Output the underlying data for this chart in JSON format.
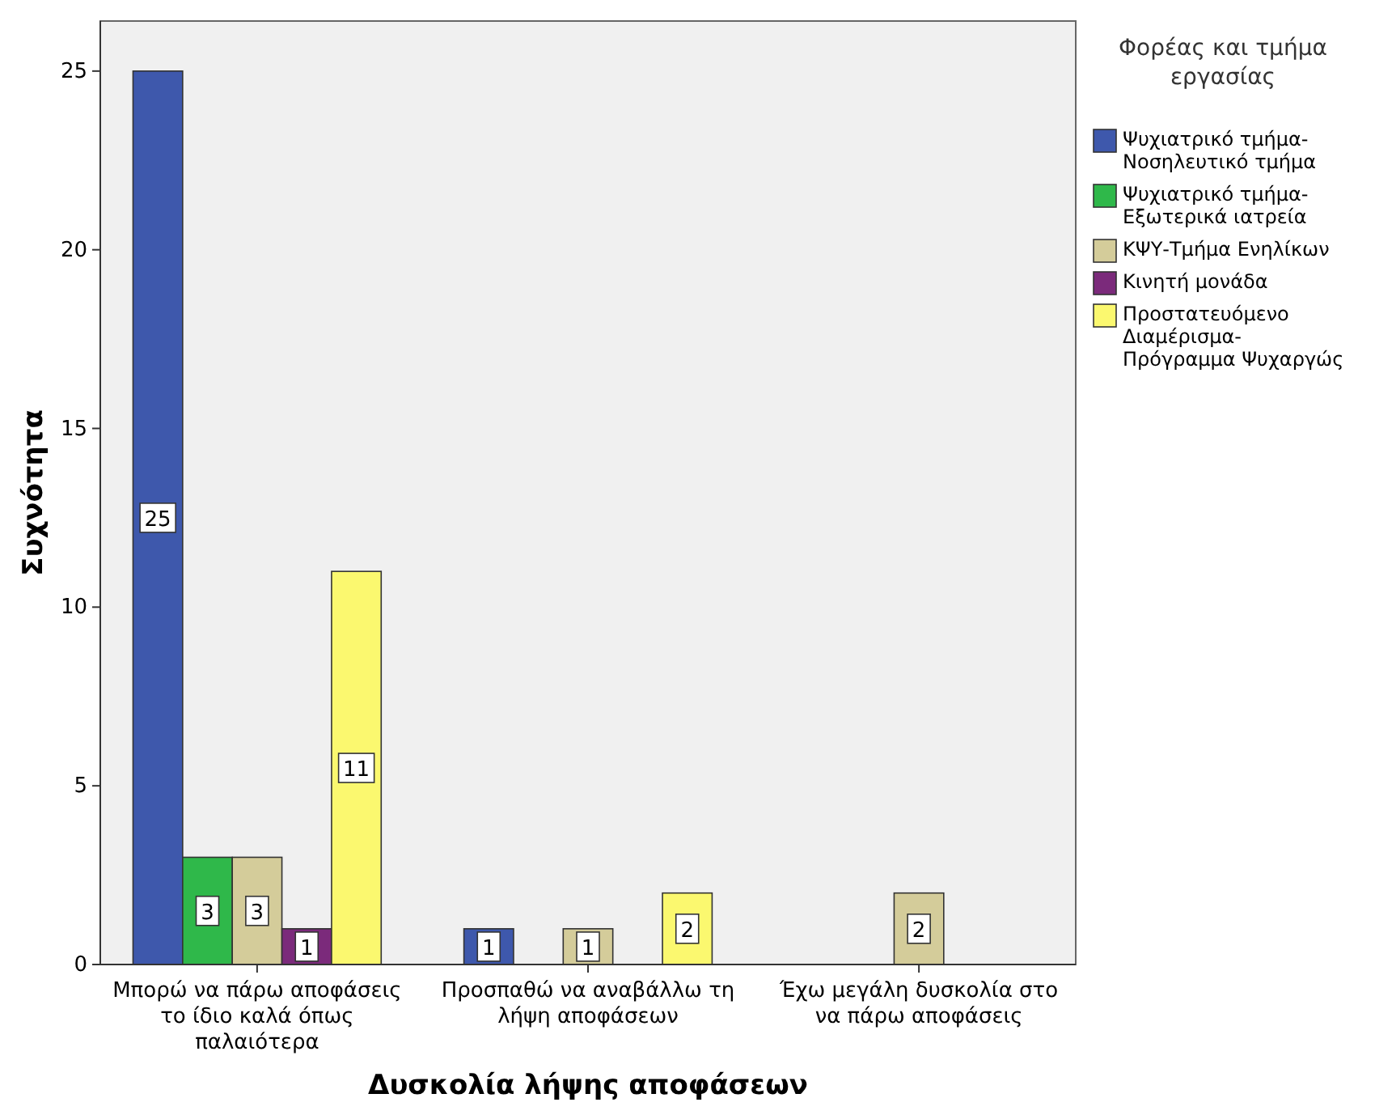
{
  "chart_data": {
    "type": "bar",
    "xlabel": "Δυσκολία λήψης αποφάσεων",
    "ylabel": "Συχνότητα",
    "legend_title": "Φορέας και τμήμα εργασίας",
    "categories": [
      "Μπορώ να πάρω αποφάσεις το ίδιο καλά όπως παλαιότερα",
      "Προσπαθώ να αναβάλλω τη λήψη αποφάσεων",
      "Έχω μεγάλη δυσκολία στο να πάρω αποφάσεις"
    ],
    "series": [
      {
        "name": "Ψυχιατρικό τμήμα-Νοσηλευτικό τμήμα",
        "color": "#3e58ac",
        "values": [
          25,
          1,
          null
        ]
      },
      {
        "name": "Ψυχιατρικό τμήμα-Εξωτερικά ιατρεία",
        "color": "#2fb84a",
        "values": [
          3,
          null,
          null
        ]
      },
      {
        "name": "ΚΨΥ-Τμήμα Ενηλίκων",
        "color": "#d4cc9a",
        "values": [
          3,
          1,
          2
        ]
      },
      {
        "name": "Κινητή μονάδα",
        "color": "#7b2a7b",
        "values": [
          1,
          null,
          null
        ]
      },
      {
        "name": "Προστατευόμενο Διαμέρισμα-Πρόγραμμα Ψυχαργώς",
        "color": "#fbf86f",
        "values": [
          11,
          2,
          null
        ]
      }
    ],
    "ylim": [
      0,
      26.4
    ],
    "yticks": [
      0,
      5,
      10,
      15,
      20,
      25
    ],
    "data_labels": true,
    "legend": "right",
    "grid": false
  }
}
